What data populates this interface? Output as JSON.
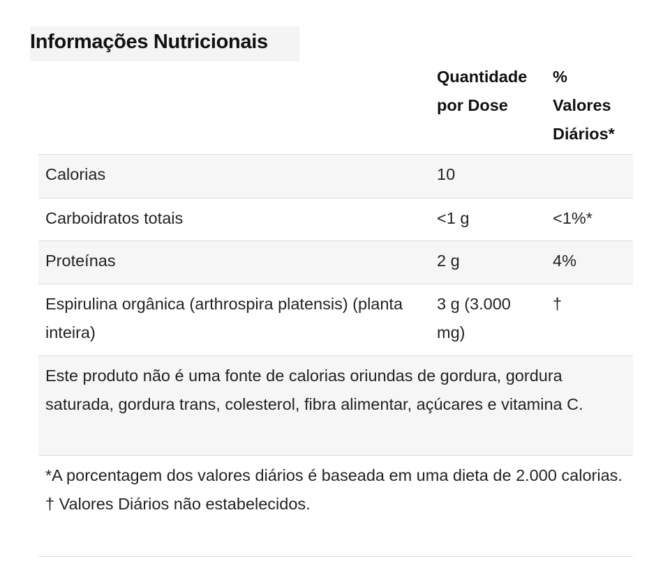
{
  "title": "Informações Nutricionais",
  "header": {
    "quantity": "Quantidade por Dose",
    "daily_value": "% Valores Diários*"
  },
  "rows": [
    {
      "name": "Calorias",
      "amount": "10",
      "dv": ""
    },
    {
      "name": "Carboidratos totais",
      "amount": "<1 g",
      "dv": "<1%*"
    },
    {
      "name": "Proteínas",
      "amount": "2 g",
      "dv": "4%"
    },
    {
      "name": "Espirulina orgânica (arthrospira platensis) (planta inteira)",
      "amount": "3 g (3.000 mg)",
      "dv": "†"
    }
  ],
  "note_not_source": "Este produto não é uma fonte de calorias oriundas de gordura, gordura saturada, gordura trans, colesterol, fibra alimentar, açúcares e vitamina C.",
  "footnotes": {
    "daily_basis": "*A porcentagem dos valores diários é baseada em uma dieta de 2.000 calorias.",
    "not_established": "† Valores Diários não estabelecidos."
  }
}
